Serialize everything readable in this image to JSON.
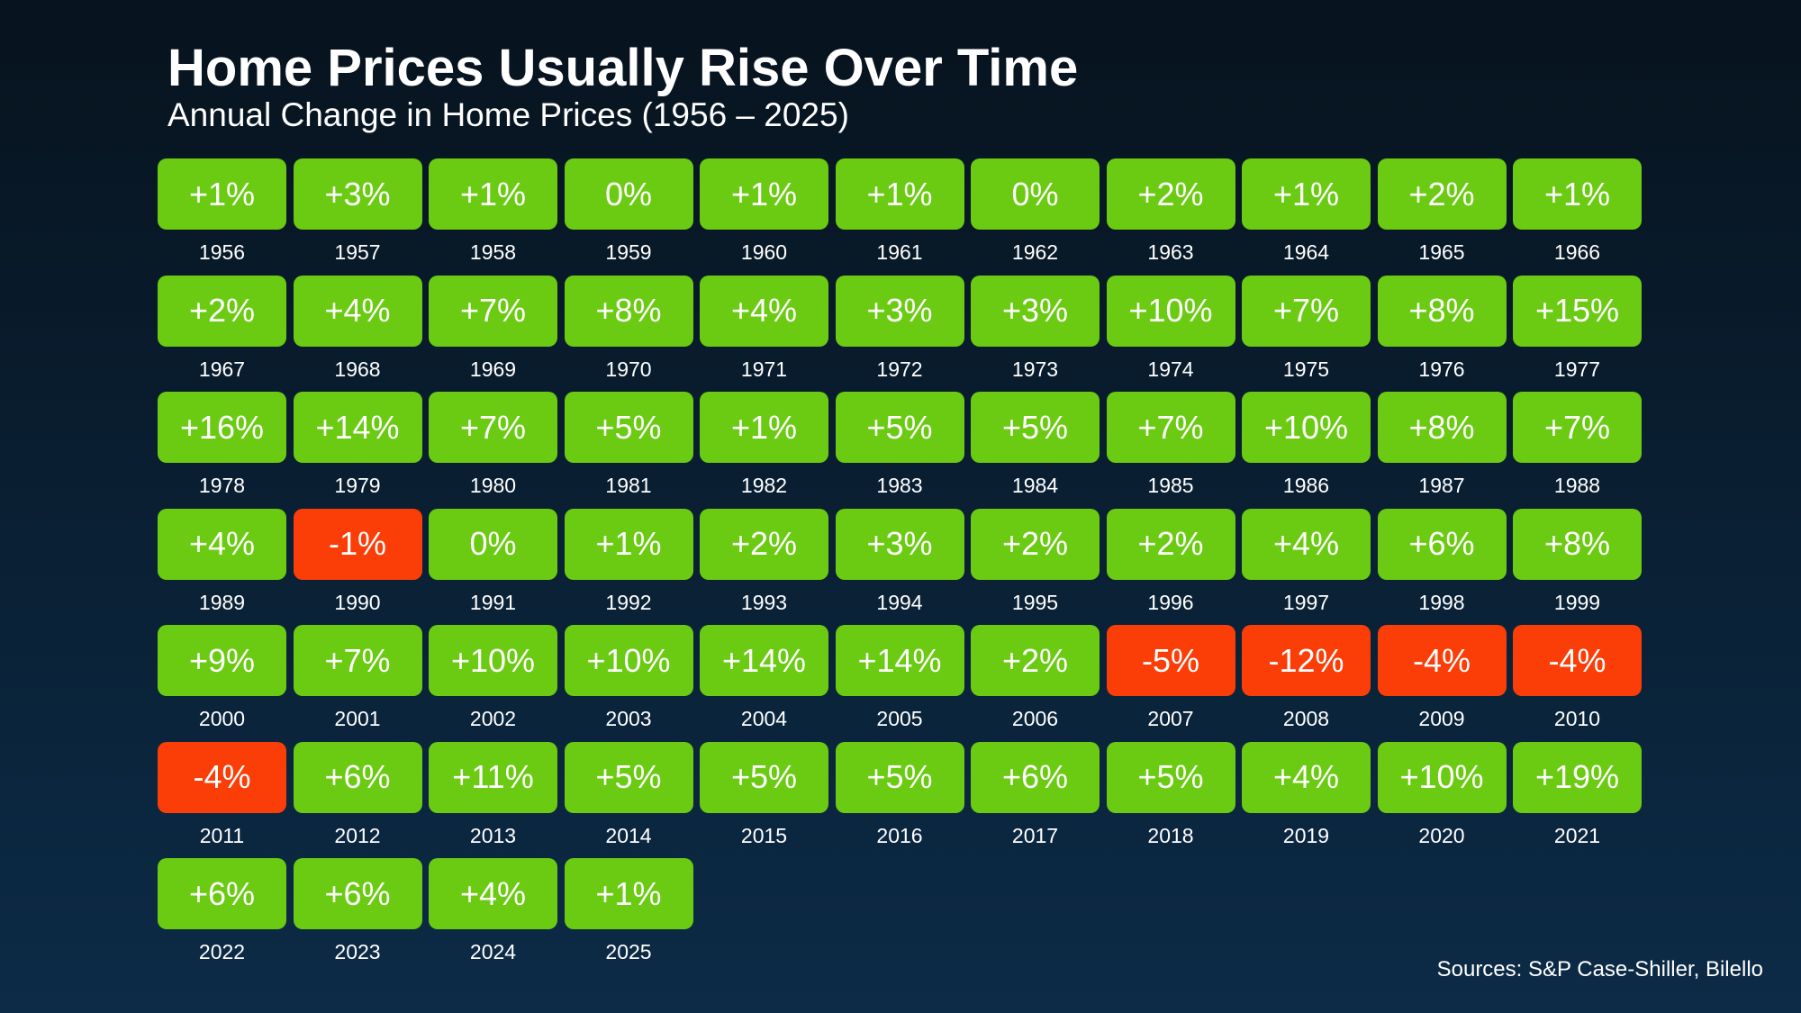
{
  "colors": {
    "background_top": "#07131e",
    "background_bottom": "#0c2b47",
    "positive": "#6bcb12",
    "negative": "#fb3d08",
    "text": "#ffffff"
  },
  "source": "Sources: S&P Case-Shiller, Bilello",
  "chart_data": {
    "type": "table",
    "title": "Home Prices Usually Rise Over Time",
    "subtitle": "Annual Change in Home Prices (1956 – 2025)",
    "categories": [
      "1956",
      "1957",
      "1958",
      "1959",
      "1960",
      "1961",
      "1962",
      "1963",
      "1964",
      "1965",
      "1966",
      "1967",
      "1968",
      "1969",
      "1970",
      "1971",
      "1972",
      "1973",
      "1974",
      "1975",
      "1976",
      "1977",
      "1978",
      "1979",
      "1980",
      "1981",
      "1982",
      "1983",
      "1984",
      "1985",
      "1986",
      "1987",
      "1988",
      "1989",
      "1990",
      "1991",
      "1992",
      "1993",
      "1994",
      "1995",
      "1996",
      "1997",
      "1998",
      "1999",
      "2000",
      "2001",
      "2002",
      "2003",
      "2004",
      "2005",
      "2006",
      "2007",
      "2008",
      "2009",
      "2010",
      "2011",
      "2012",
      "2013",
      "2014",
      "2015",
      "2016",
      "2017",
      "2018",
      "2019",
      "2020",
      "2021",
      "2022",
      "2023",
      "2024",
      "2025"
    ],
    "values": [
      1,
      3,
      1,
      0,
      1,
      1,
      0,
      2,
      1,
      2,
      1,
      2,
      4,
      7,
      8,
      4,
      3,
      3,
      10,
      7,
      8,
      15,
      16,
      14,
      7,
      5,
      1,
      5,
      5,
      7,
      10,
      8,
      7,
      4,
      -1,
      0,
      1,
      2,
      3,
      2,
      2,
      4,
      6,
      8,
      9,
      7,
      10,
      10,
      14,
      14,
      2,
      -5,
      -12,
      -4,
      -4,
      -4,
      6,
      11,
      5,
      5,
      5,
      6,
      5,
      4,
      10,
      19,
      6,
      6,
      4,
      1
    ],
    "labels": [
      "+1%",
      "+3%",
      "+1%",
      "0%",
      "+1%",
      "+1%",
      "0%",
      "+2%",
      "+1%",
      "+2%",
      "+1%",
      "+2%",
      "+4%",
      "+7%",
      "+8%",
      "+4%",
      "+3%",
      "+3%",
      "+10%",
      "+7%",
      "+8%",
      "+15%",
      "+16%",
      "+14%",
      "+7%",
      "+5%",
      "+1%",
      "+5%",
      "+5%",
      "+7%",
      "+10%",
      "+8%",
      "+7%",
      "+4%",
      "-1%",
      "0%",
      "+1%",
      "+2%",
      "+3%",
      "+2%",
      "+2%",
      "+4%",
      "+6%",
      "+8%",
      "+9%",
      "+7%",
      "+10%",
      "+10%",
      "+14%",
      "+14%",
      "+2%",
      "-5%",
      "-12%",
      "-4%",
      "-4%",
      "-4%",
      "+6%",
      "+11%",
      "+5%",
      "+5%",
      "+5%",
      "+6%",
      "+5%",
      "+4%",
      "+10%",
      "+19%",
      "+6%",
      "+6%",
      "+4%",
      "+1%"
    ]
  }
}
